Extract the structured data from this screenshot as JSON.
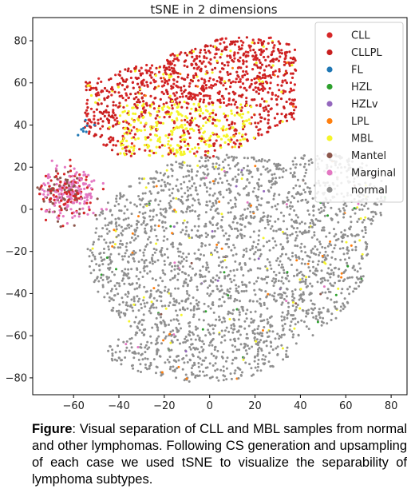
{
  "chart_data": {
    "type": "scatter",
    "title": "tSNE in 2 dimensions",
    "xlabel": "",
    "ylabel": "",
    "xlim": [
      -78,
      87
    ],
    "ylim": [
      -88,
      91
    ],
    "x_ticks": [
      -60,
      -40,
      -20,
      0,
      20,
      40,
      60,
      80
    ],
    "y_ticks": [
      80,
      60,
      40,
      20,
      0,
      -20,
      -40,
      -60,
      -80
    ],
    "grid": false,
    "legend_position": "top-right",
    "series": [
      {
        "name": "CLL",
        "color": "#d62728"
      },
      {
        "name": "CLLPL",
        "color": "#c81e1e"
      },
      {
        "name": "FL",
        "color": "#1f77b4"
      },
      {
        "name": "HZL",
        "color": "#2ca02c"
      },
      {
        "name": "HZLv",
        "color": "#9467bd"
      },
      {
        "name": "LPL",
        "color": "#ff7f0e"
      },
      {
        "name": "MBL",
        "color": "#f5f52a"
      },
      {
        "name": "Mantel",
        "color": "#8c564b"
      },
      {
        "name": "Marginal",
        "color": "#e377c2"
      },
      {
        "name": "normal",
        "color": "#8f8f8f"
      }
    ]
  },
  "caption": {
    "bold": "Figure",
    "text": ": Visual separation of CLL and MBL samples from normal and other lymphomas. Following CS generation and upsampling of each case we used tSNE to visualize the separability of lymphoma subtypes."
  }
}
